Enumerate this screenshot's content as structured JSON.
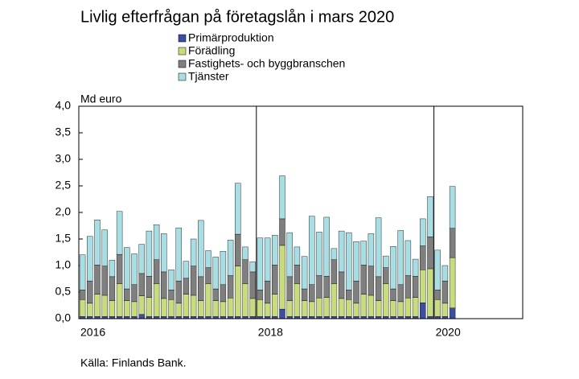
{
  "chart_data": {
    "type": "stacked_bar",
    "title": "Livlig efterfrågan på företagslån i mars 2020",
    "y_label": "Md euro",
    "source": "Källa: Finlands Bank.",
    "categories": [
      "2016",
      null,
      null,
      null,
      null,
      null,
      null,
      null,
      null,
      null,
      null,
      null,
      null,
      null,
      null,
      null,
      null,
      null,
      null,
      null,
      null,
      null,
      null,
      null,
      "2018",
      null,
      null,
      null,
      null,
      null,
      null,
      null,
      null,
      null,
      null,
      null,
      null,
      null,
      null,
      null,
      null,
      null,
      null,
      null,
      null,
      null,
      null,
      null,
      "2020",
      null,
      null,
      null,
      null,
      null,
      null,
      null,
      null,
      null,
      null,
      null
    ],
    "series": [
      {
        "name": "Primärproduktion",
        "color": "#3a4fa0",
        "values": [
          0.04,
          0.04,
          0.04,
          0.04,
          0.04,
          0.04,
          0.04,
          0.04,
          0.08,
          0.04,
          0.04,
          0.04,
          0.04,
          0.04,
          0.04,
          0.04,
          0.04,
          0.04,
          0.04,
          0.04,
          0.04,
          0.04,
          0.04,
          0.04,
          0.04,
          0.04,
          0.04,
          0.18,
          0.04,
          0.04,
          0.04,
          0.04,
          0.04,
          0.04,
          0.04,
          0.04,
          0.04,
          0.04,
          0.04,
          0.04,
          0.04,
          0.04,
          0.04,
          0.04,
          0.04,
          0.04,
          0.3,
          0.04,
          0.04,
          0.04,
          0.2,
          null,
          null,
          null,
          null,
          null,
          null,
          null,
          null,
          null
        ]
      },
      {
        "name": "Förädling",
        "color": "#c7dc7e",
        "values": [
          0.32,
          0.25,
          0.42,
          0.4,
          0.3,
          0.62,
          0.3,
          0.28,
          0.35,
          0.36,
          0.62,
          0.34,
          0.32,
          0.25,
          0.42,
          0.4,
          0.3,
          0.62,
          0.3,
          0.28,
          0.35,
          0.95,
          0.62,
          0.34,
          0.32,
          0.25,
          0.42,
          1.2,
          0.3,
          0.62,
          0.3,
          0.28,
          0.35,
          0.36,
          0.62,
          0.34,
          0.32,
          0.25,
          0.42,
          0.4,
          0.3,
          0.62,
          0.3,
          0.28,
          0.35,
          0.36,
          0.62,
          0.9,
          0.32,
          0.25,
          0.95,
          null,
          null,
          null,
          null,
          null,
          null,
          null,
          null,
          null
        ]
      },
      {
        "name": "Fastighets- och byggbranschen",
        "color": "#7f7f7f",
        "values": [
          0.18,
          0.42,
          0.55,
          0.55,
          0.45,
          0.55,
          0.22,
          0.32,
          0.42,
          0.4,
          0.45,
          0.5,
          0.18,
          0.42,
          0.3,
          0.55,
          0.45,
          0.3,
          0.22,
          0.32,
          0.42,
          0.6,
          0.45,
          0.5,
          0.18,
          0.42,
          0.55,
          0.5,
          0.45,
          0.35,
          0.22,
          0.32,
          0.42,
          0.4,
          0.45,
          0.5,
          0.18,
          0.42,
          0.55,
          0.55,
          0.45,
          0.3,
          0.22,
          0.32,
          0.42,
          0.4,
          0.45,
          0.6,
          0.18,
          0.42,
          0.55,
          null,
          null,
          null,
          null,
          null,
          null,
          null,
          null,
          null
        ]
      },
      {
        "name": "Tjänster",
        "color": "#a8dde3",
        "values": [
          0.66,
          0.84,
          0.85,
          0.68,
          0.31,
          0.81,
          0.78,
          0.58,
          0.55,
          0.85,
          0.66,
          0.72,
          0.38,
          1.0,
          0.32,
          0.51,
          1.06,
          0.32,
          0.6,
          0.63,
          0.67,
          0.96,
          0.24,
          0.19,
          0.98,
          0.81,
          0.56,
          0.81,
          0.83,
          0.34,
          0.61,
          1.29,
          0.82,
          1.11,
          0.21,
          0.77,
          1.08,
          0.74,
          0.45,
          0.61,
          1.11,
          0.22,
          0.8,
          1.02,
          0.66,
          0.32,
          0.51,
          0.76,
          0.75,
          0.29,
          0.79,
          null,
          null,
          null,
          null,
          null,
          null,
          null,
          null,
          null
        ]
      }
    ],
    "ylim": [
      0,
      4
    ],
    "yticks": [
      {
        "value": 0,
        "label": "0,0"
      },
      {
        "value": 0.5,
        "label": "0,5"
      },
      {
        "value": 1,
        "label": "1,0"
      },
      {
        "value": 1.5,
        "label": "1,5"
      },
      {
        "value": 2,
        "label": "2,0"
      },
      {
        "value": 2.5,
        "label": "2,5"
      },
      {
        "value": 3,
        "label": "3,0"
      },
      {
        "value": 3.5,
        "label": "3,5"
      },
      {
        "value": 4,
        "label": "4,0"
      }
    ]
  }
}
